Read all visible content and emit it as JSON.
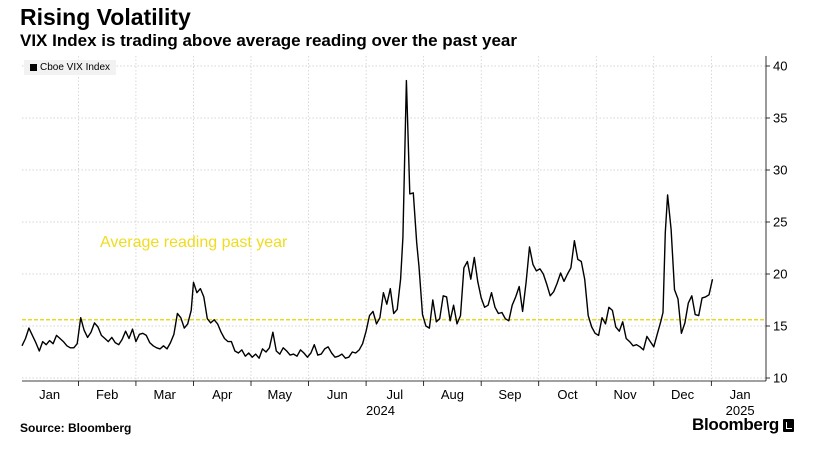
{
  "header": {
    "title": "Rising Volatility",
    "subtitle": "VIX Index is trading above average reading over the past year"
  },
  "legend": {
    "label": "Cboe VIX Index"
  },
  "footer": {
    "source": "Source: Bloomberg",
    "brand": "Bloomberg"
  },
  "colors": {
    "series": "#000000",
    "average_line": "#e6d200",
    "average_text": "#f0dc1e",
    "grid": "#c8c8c8"
  },
  "chart_data": {
    "type": "line",
    "ylim": [
      10,
      41
    ],
    "yticks": [
      10,
      15,
      20,
      25,
      30,
      35,
      40
    ],
    "y_axis_side": "right",
    "grid": true,
    "legend_position": "top-left",
    "x_month_labels": [
      {
        "label": "Jan",
        "t": 1.0
      },
      {
        "label": "Feb",
        "t": 2.0
      },
      {
        "label": "Mar",
        "t": 3.0
      },
      {
        "label": "Apr",
        "t": 4.0
      },
      {
        "label": "May",
        "t": 5.0
      },
      {
        "label": "Jun",
        "t": 6.0
      },
      {
        "label": "Jul",
        "t": 7.0
      },
      {
        "label": "Aug",
        "t": 8.0
      },
      {
        "label": "Sep",
        "t": 9.0
      },
      {
        "label": "Oct",
        "t": 10.0
      },
      {
        "label": "Nov",
        "t": 11.0
      },
      {
        "label": "Dec",
        "t": 12.0
      },
      {
        "label": "Jan",
        "t": 13.0
      }
    ],
    "year_labels": [
      {
        "label": "2024",
        "t": 6.75
      },
      {
        "label": "2025",
        "t": 13.0
      }
    ],
    "average": {
      "label": "Average reading past year",
      "value": 15.6
    },
    "series": [
      {
        "name": "Cboe VIX Index",
        "points": [
          [
            0.52,
            13.1
          ],
          [
            0.58,
            13.8
          ],
          [
            0.64,
            14.8
          ],
          [
            0.7,
            14.1
          ],
          [
            0.76,
            13.4
          ],
          [
            0.82,
            12.6
          ],
          [
            0.88,
            13.5
          ],
          [
            0.94,
            13.2
          ],
          [
            1.0,
            13.6
          ],
          [
            1.06,
            13.3
          ],
          [
            1.12,
            14.1
          ],
          [
            1.18,
            13.8
          ],
          [
            1.24,
            13.5
          ],
          [
            1.3,
            13.1
          ],
          [
            1.36,
            12.9
          ],
          [
            1.42,
            12.9
          ],
          [
            1.48,
            13.3
          ],
          [
            1.54,
            15.8
          ],
          [
            1.6,
            14.6
          ],
          [
            1.66,
            13.9
          ],
          [
            1.72,
            14.4
          ],
          [
            1.78,
            15.3
          ],
          [
            1.84,
            14.9
          ],
          [
            1.9,
            14.1
          ],
          [
            1.96,
            13.8
          ],
          [
            2.02,
            13.5
          ],
          [
            2.08,
            13.9
          ],
          [
            2.14,
            13.4
          ],
          [
            2.2,
            13.2
          ],
          [
            2.26,
            13.7
          ],
          [
            2.32,
            14.5
          ],
          [
            2.38,
            13.8
          ],
          [
            2.44,
            14.7
          ],
          [
            2.5,
            13.5
          ],
          [
            2.56,
            14.2
          ],
          [
            2.62,
            14.3
          ],
          [
            2.68,
            14.1
          ],
          [
            2.74,
            13.4
          ],
          [
            2.8,
            13.1
          ],
          [
            2.86,
            12.9
          ],
          [
            2.92,
            12.8
          ],
          [
            2.98,
            13.1
          ],
          [
            3.04,
            12.8
          ],
          [
            3.1,
            13.4
          ],
          [
            3.16,
            14.2
          ],
          [
            3.22,
            16.2
          ],
          [
            3.28,
            15.8
          ],
          [
            3.34,
            14.8
          ],
          [
            3.4,
            15.2
          ],
          [
            3.46,
            16.5
          ],
          [
            3.5,
            19.2
          ],
          [
            3.56,
            18.2
          ],
          [
            3.62,
            18.6
          ],
          [
            3.68,
            17.8
          ],
          [
            3.74,
            15.7
          ],
          [
            3.8,
            15.3
          ],
          [
            3.86,
            15.6
          ],
          [
            3.92,
            15.2
          ],
          [
            3.98,
            14.4
          ],
          [
            4.04,
            13.8
          ],
          [
            4.1,
            13.5
          ],
          [
            4.16,
            13.5
          ],
          [
            4.22,
            12.6
          ],
          [
            4.28,
            12.4
          ],
          [
            4.34,
            12.7
          ],
          [
            4.4,
            12.1
          ],
          [
            4.46,
            12.4
          ],
          [
            4.52,
            12.0
          ],
          [
            4.58,
            12.3
          ],
          [
            4.64,
            11.9
          ],
          [
            4.7,
            12.8
          ],
          [
            4.76,
            12.5
          ],
          [
            4.82,
            12.9
          ],
          [
            4.88,
            14.4
          ],
          [
            4.94,
            12.6
          ],
          [
            5.0,
            12.3
          ],
          [
            5.06,
            12.9
          ],
          [
            5.12,
            12.6
          ],
          [
            5.18,
            12.2
          ],
          [
            5.24,
            12.3
          ],
          [
            5.3,
            12.1
          ],
          [
            5.36,
            12.7
          ],
          [
            5.42,
            12.4
          ],
          [
            5.48,
            12.0
          ],
          [
            5.54,
            12.4
          ],
          [
            5.6,
            13.2
          ],
          [
            5.66,
            12.2
          ],
          [
            5.72,
            12.3
          ],
          [
            5.78,
            12.8
          ],
          [
            5.84,
            13.0
          ],
          [
            5.9,
            12.4
          ],
          [
            5.96,
            12.0
          ],
          [
            6.02,
            12.1
          ],
          [
            6.08,
            12.3
          ],
          [
            6.14,
            11.9
          ],
          [
            6.2,
            12.0
          ],
          [
            6.26,
            12.5
          ],
          [
            6.32,
            12.4
          ],
          [
            6.38,
            12.7
          ],
          [
            6.44,
            13.3
          ],
          [
            6.5,
            14.5
          ],
          [
            6.56,
            16.0
          ],
          [
            6.62,
            16.4
          ],
          [
            6.68,
            15.2
          ],
          [
            6.74,
            15.8
          ],
          [
            6.8,
            18.2
          ],
          [
            6.86,
            17.1
          ],
          [
            6.92,
            18.6
          ],
          [
            6.98,
            16.2
          ],
          [
            7.04,
            16.6
          ],
          [
            7.1,
            19.5
          ],
          [
            7.14,
            23.5
          ],
          [
            7.2,
            38.6
          ],
          [
            7.26,
            27.7
          ],
          [
            7.32,
            27.8
          ],
          [
            7.38,
            23.0
          ],
          [
            7.42,
            20.7
          ],
          [
            7.48,
            16.1
          ],
          [
            7.54,
            15.0
          ],
          [
            7.6,
            14.8
          ],
          [
            7.66,
            17.5
          ],
          [
            7.72,
            15.4
          ],
          [
            7.78,
            15.7
          ],
          [
            7.84,
            17.9
          ],
          [
            7.9,
            17.8
          ],
          [
            7.96,
            15.5
          ],
          [
            8.02,
            17.0
          ],
          [
            8.08,
            15.2
          ],
          [
            8.14,
            16.0
          ],
          [
            8.2,
            20.6
          ],
          [
            8.26,
            21.2
          ],
          [
            8.32,
            19.5
          ],
          [
            8.38,
            21.6
          ],
          [
            8.44,
            19.3
          ],
          [
            8.5,
            17.7
          ],
          [
            8.56,
            16.8
          ],
          [
            8.62,
            17.0
          ],
          [
            8.68,
            18.2
          ],
          [
            8.74,
            16.8
          ],
          [
            8.8,
            16.2
          ],
          [
            8.86,
            16.3
          ],
          [
            8.92,
            15.7
          ],
          [
            8.98,
            15.5
          ],
          [
            9.04,
            17.0
          ],
          [
            9.1,
            17.8
          ],
          [
            9.16,
            18.8
          ],
          [
            9.22,
            16.4
          ],
          [
            9.28,
            19.2
          ],
          [
            9.34,
            22.6
          ],
          [
            9.4,
            20.9
          ],
          [
            9.46,
            20.3
          ],
          [
            9.52,
            20.5
          ],
          [
            9.58,
            20.0
          ],
          [
            9.64,
            19.0
          ],
          [
            9.7,
            17.9
          ],
          [
            9.76,
            18.3
          ],
          [
            9.82,
            19.1
          ],
          [
            9.88,
            20.1
          ],
          [
            9.94,
            19.3
          ],
          [
            10.0,
            20.0
          ],
          [
            10.06,
            20.6
          ],
          [
            10.12,
            23.2
          ],
          [
            10.18,
            21.4
          ],
          [
            10.24,
            21.2
          ],
          [
            10.3,
            19.5
          ],
          [
            10.36,
            16.0
          ],
          [
            10.42,
            14.9
          ],
          [
            10.48,
            14.3
          ],
          [
            10.54,
            14.1
          ],
          [
            10.6,
            15.8
          ],
          [
            10.66,
            15.2
          ],
          [
            10.72,
            16.8
          ],
          [
            10.78,
            16.5
          ],
          [
            10.84,
            14.9
          ],
          [
            10.9,
            14.5
          ],
          [
            10.96,
            15.4
          ],
          [
            11.02,
            13.8
          ],
          [
            11.08,
            13.5
          ],
          [
            11.14,
            13.1
          ],
          [
            11.2,
            13.2
          ],
          [
            11.26,
            13.0
          ],
          [
            11.32,
            12.7
          ],
          [
            11.38,
            14.0
          ],
          [
            11.44,
            13.5
          ],
          [
            11.5,
            13.0
          ],
          [
            11.56,
            14.2
          ],
          [
            11.62,
            15.4
          ],
          [
            11.66,
            16.3
          ],
          [
            11.7,
            24.0
          ],
          [
            11.74,
            27.6
          ],
          [
            11.8,
            24.3
          ],
          [
            11.86,
            18.5
          ],
          [
            11.92,
            17.6
          ],
          [
            11.98,
            14.3
          ],
          [
            12.04,
            15.3
          ],
          [
            12.1,
            17.2
          ],
          [
            12.16,
            17.9
          ],
          [
            12.22,
            16.1
          ],
          [
            12.28,
            16.0
          ],
          [
            12.34,
            17.7
          ],
          [
            12.4,
            17.8
          ],
          [
            12.46,
            18.0
          ],
          [
            12.52,
            19.5
          ]
        ]
      }
    ]
  }
}
